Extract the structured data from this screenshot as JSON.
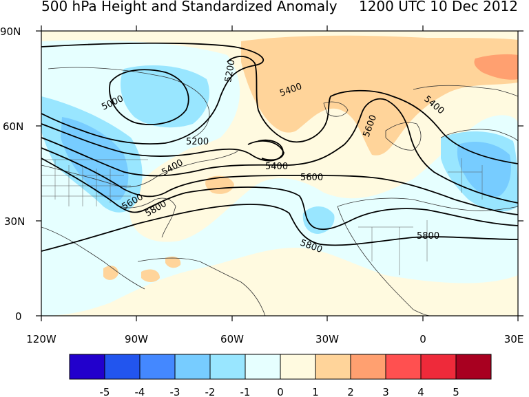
{
  "title": "500 hPa Height and Standardized Anomaly",
  "valid_time": "1200 UTC 10 Dec 2012",
  "axes": {
    "lat_labels": [
      "90N",
      "60N",
      "30N",
      "0"
    ],
    "lon_labels": [
      "120W",
      "90W",
      "60W",
      "30W",
      "0",
      "30E"
    ]
  },
  "contour_labels": [
    "5000",
    "5200",
    "5200",
    "5400",
    "5400",
    "5400",
    "5400",
    "5600",
    "5600",
    "5600",
    "5800",
    "5800",
    "5800"
  ],
  "colorbar": {
    "labels": [
      "-5",
      "-4",
      "-3",
      "-2",
      "-1",
      "0",
      "1",
      "2",
      "3",
      "4",
      "5"
    ],
    "colors": [
      "#2200cc",
      "#2255ee",
      "#4488ff",
      "#77ccff",
      "#99e6ff",
      "#e6ffff",
      "#fffae0",
      "#ffd49a",
      "#ffa070",
      "#ff5050",
      "#ee2a3a",
      "#a80020"
    ]
  },
  "colors": {
    "background": "#fffae0",
    "neg1": "#e6ffff",
    "neg2": "#99e6ff",
    "neg3": "#77ccff",
    "pos1": "#ffd49a",
    "pos2": "#ffa070"
  }
}
